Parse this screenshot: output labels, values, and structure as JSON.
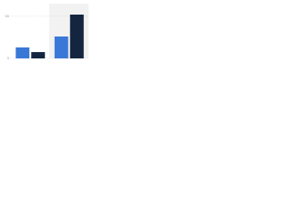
{
  "chart_data": {
    "type": "bar",
    "categories": [
      null,
      null
    ],
    "series": [
      {
        "color": "#3a78d8",
        "values": [
          13,
          26
        ]
      },
      {
        "color": "#13253f",
        "values": [
          7.5,
          52
        ]
      }
    ],
    "ylim": [
      0,
      65
    ],
    "yticks": [
      0,
      50
    ],
    "grid": true
  }
}
